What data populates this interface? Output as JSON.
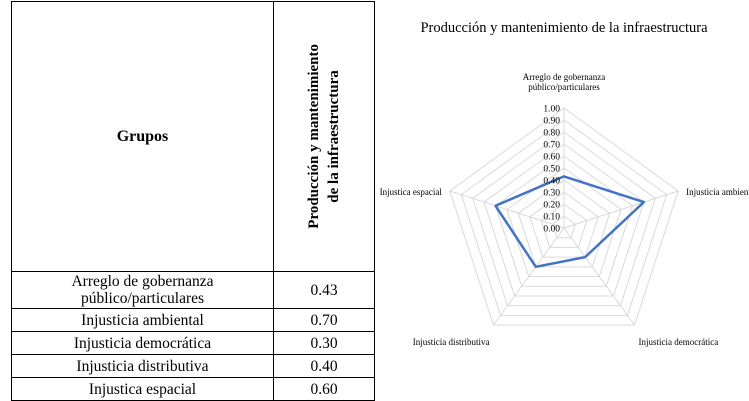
{
  "table": {
    "header_groups": "Grupos",
    "header_metric_line1": "Producción y mantenimiento",
    "header_metric_line2": "de la infraestructura",
    "rows": [
      {
        "label_line1": "Arreglo de gobernanza",
        "label_line2": "público/particulares",
        "value": "0.43"
      },
      {
        "label_line1": "Injusticia ambiental",
        "label_line2": "",
        "value": "0.70"
      },
      {
        "label_line1": "Injusticia democrática",
        "label_line2": "",
        "value": "0.30"
      },
      {
        "label_line1": "Injusticia distributiva",
        "label_line2": "",
        "value": "0.40"
      },
      {
        "label_line1": "Injustica espacial",
        "label_line2": "",
        "value": "0.60"
      }
    ]
  },
  "chart_data": {
    "type": "radar",
    "title": "Producción y mantenimiento de la infraestructura",
    "axes": [
      {
        "line1": "Arreglo de gobernanza",
        "line2": "público/particulares"
      },
      {
        "line1": "Injusticia ambiental",
        "line2": ""
      },
      {
        "line1": "Injusticia democrática",
        "line2": ""
      },
      {
        "line1": "Injusticia distributiva",
        "line2": ""
      },
      {
        "line1": "Injustica espacial",
        "line2": ""
      }
    ],
    "values": [
      0.43,
      0.7,
      0.3,
      0.4,
      0.6
    ],
    "range": [
      0,
      1
    ],
    "ticks": [
      "0.00",
      "0.10",
      "0.20",
      "0.30",
      "0.40",
      "0.50",
      "0.60",
      "0.70",
      "0.80",
      "0.90",
      "1.00"
    ],
    "series_color": "#4472c4",
    "grid_color": "#d9d9d9",
    "grid": true,
    "legend": false
  }
}
